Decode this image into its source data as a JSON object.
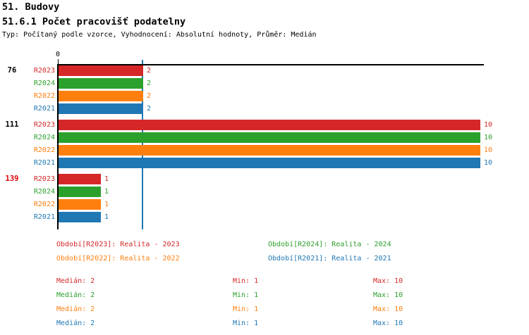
{
  "header": {
    "section_title": "51. Budovy",
    "chart_title": "51.6.1 Počet pracovišť podatelny",
    "subtitle": "Typ: Počítaný podle vzorce, Vyhodnocení: Absolutní hodnoty, Průměr: Medián"
  },
  "colors": {
    "R2023": "#d62728",
    "R2024": "#2ca02c",
    "R2022": "#ff7f0e",
    "R2021": "#1f77b4",
    "group_label_normal": "#000000",
    "group_label_highlight": "#e00000",
    "axis": "#000000",
    "median_line": "#1f77b4",
    "background": "#ffffff"
  },
  "chart_data": {
    "type": "bar",
    "orientation": "horizontal",
    "x_axis": {
      "origin_label": "0",
      "min": 0,
      "max": 10.1,
      "position": "top",
      "grid": false
    },
    "median_reference_line": {
      "value": 2
    },
    "series_order": [
      "R2023",
      "R2024",
      "R2022",
      "R2021"
    ],
    "groups": [
      {
        "label": "76",
        "highlighted": false,
        "values": [
          2,
          2,
          2,
          2
        ]
      },
      {
        "label": "111",
        "highlighted": false,
        "values": [
          10,
          10,
          10,
          10
        ]
      },
      {
        "label": "139",
        "highlighted": true,
        "values": [
          1,
          1,
          1,
          1
        ]
      }
    ]
  },
  "legend": {
    "items": [
      {
        "series": "R2023",
        "label": "Období[R2023]: Realita - 2023"
      },
      {
        "series": "R2024",
        "label": "Období[R2024]: Realita - 2024"
      },
      {
        "series": "R2022",
        "label": "Období[R2022]: Realita - 2022"
      },
      {
        "series": "R2021",
        "label": "Období[R2021]: Realita - 2021"
      }
    ]
  },
  "stats": {
    "rows": [
      {
        "series": "R2023",
        "median": "Medián: 2",
        "min": "Min: 1",
        "max": "Max: 10"
      },
      {
        "series": "R2024",
        "median": "Medián: 2",
        "min": "Min: 1",
        "max": "Max: 10"
      },
      {
        "series": "R2022",
        "median": "Medián: 2",
        "min": "Min: 1",
        "max": "Max: 10"
      },
      {
        "series": "R2021",
        "median": "Medián: 2",
        "min": "Min: 1",
        "max": "Max: 10"
      }
    ]
  }
}
